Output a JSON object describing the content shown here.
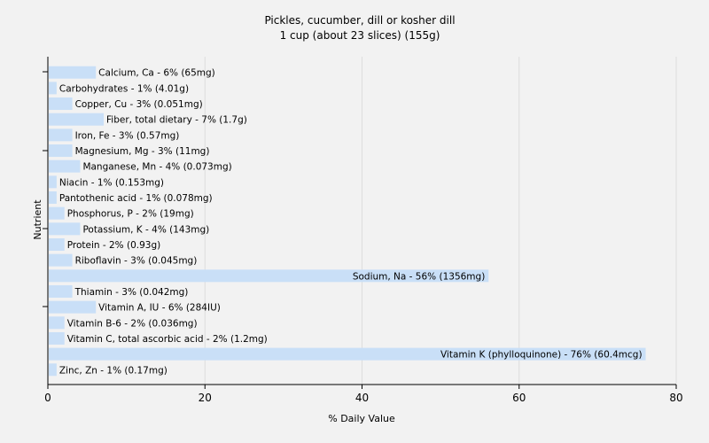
{
  "chart_data": {
    "type": "bar",
    "orientation": "horizontal",
    "title": "Pickles, cucumber, dill or kosher dill",
    "subtitle": "1 cup (about 23 slices) (155g)",
    "xlabel": "% Daily Value",
    "ylabel": "Nutrient",
    "xlim": [
      0,
      80
    ],
    "xticks": [
      0,
      20,
      40,
      60,
      80
    ],
    "grid": true,
    "bar_color": "#c9dff7",
    "categories": [
      "Calcium, Ca",
      "Carbohydrates",
      "Copper, Cu",
      "Fiber, total dietary",
      "Iron, Fe",
      "Magnesium, Mg",
      "Manganese, Mn",
      "Niacin",
      "Pantothenic acid",
      "Phosphorus, P",
      "Potassium, K",
      "Protein",
      "Riboflavin",
      "Sodium, Na",
      "Thiamin",
      "Vitamin A, IU",
      "Vitamin B-6",
      "Vitamin C, total ascorbic acid",
      "Vitamin K (phylloquinone)",
      "Zinc, Zn"
    ],
    "values": [
      6,
      1,
      3,
      7,
      3,
      3,
      4,
      1,
      1,
      2,
      4,
      2,
      3,
      56,
      3,
      6,
      2,
      2,
      76,
      1
    ],
    "labels": [
      "Calcium, Ca - 6% (65mg)",
      "Carbohydrates - 1% (4.01g)",
      "Copper, Cu - 3% (0.051mg)",
      "Fiber, total dietary - 7% (1.7g)",
      "Iron, Fe - 3% (0.57mg)",
      "Magnesium, Mg - 3% (11mg)",
      "Manganese, Mn - 4% (0.073mg)",
      "Niacin - 1% (0.153mg)",
      "Pantothenic acid - 1% (0.078mg)",
      "Phosphorus, P - 2% (19mg)",
      "Potassium, K - 4% (143mg)",
      "Protein - 2% (0.93g)",
      "Riboflavin - 3% (0.045mg)",
      "Sodium, Na - 56% (1356mg)",
      "Thiamin - 3% (0.042mg)",
      "Vitamin A, IU - 6% (284IU)",
      "Vitamin B-6 - 2% (0.036mg)",
      "Vitamin C, total ascorbic acid - 2% (1.2mg)",
      "Vitamin K (phylloquinone) - 76% (60.4mcg)",
      "Zinc, Zn - 1% (0.17mg)"
    ]
  }
}
